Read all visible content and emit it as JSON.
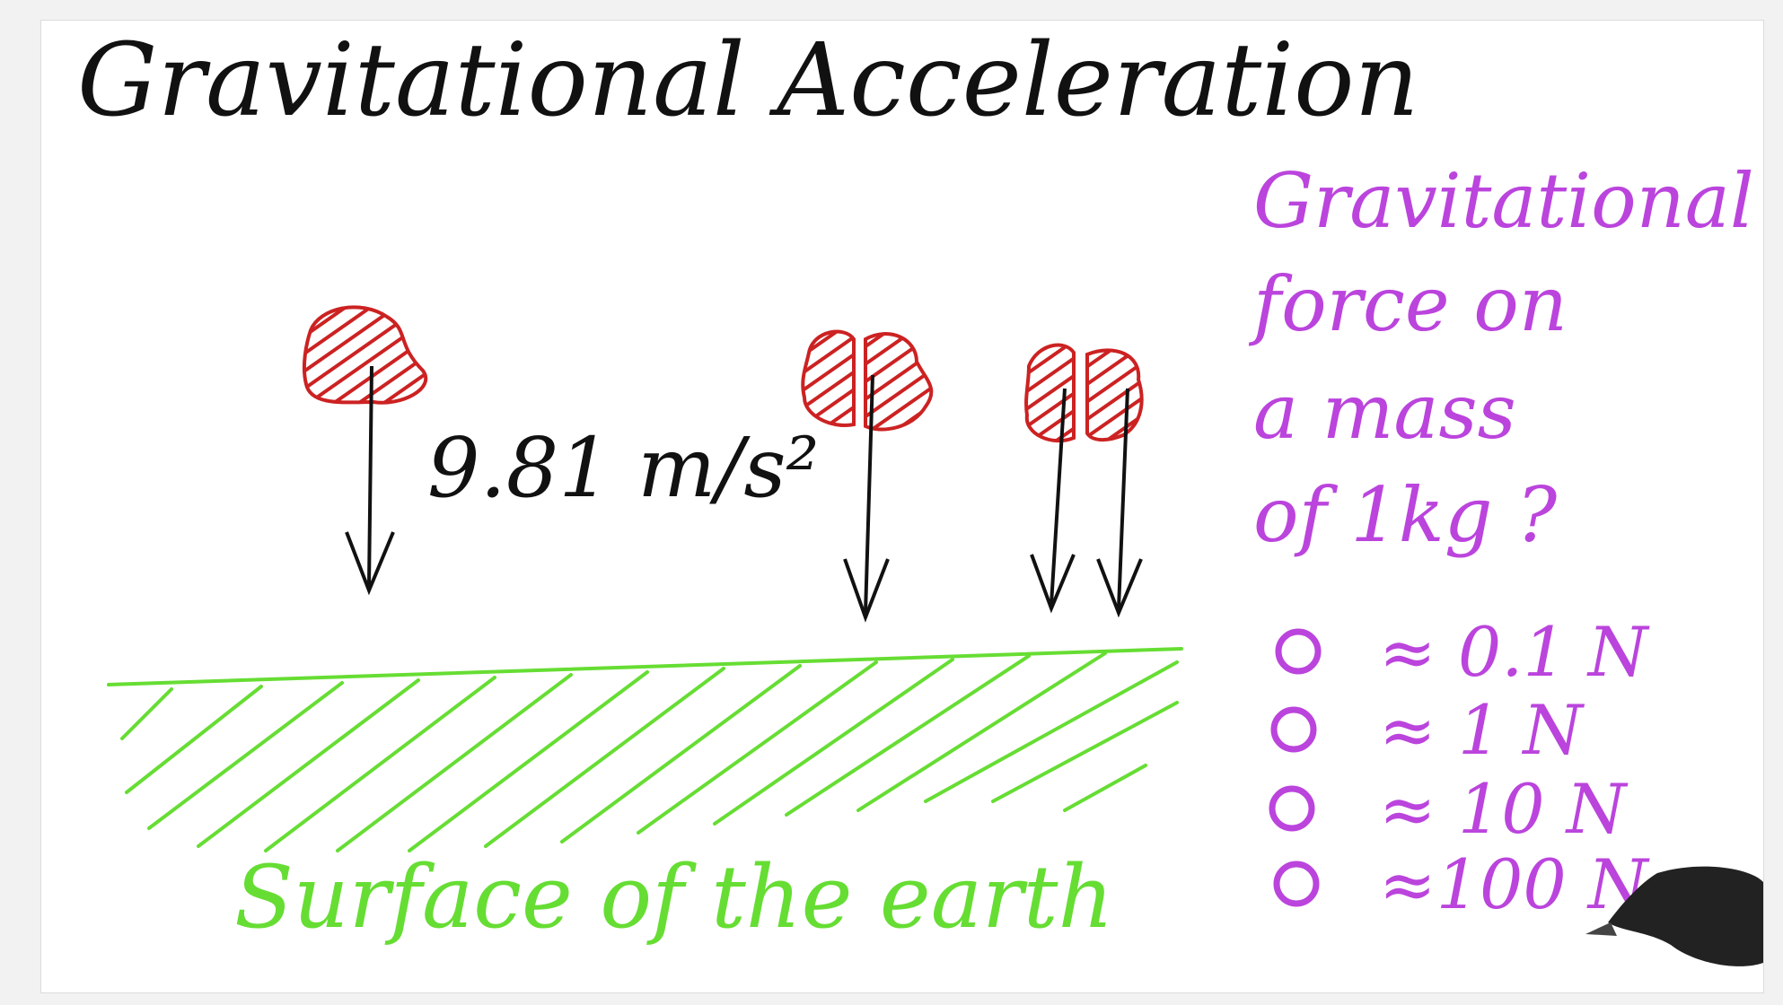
{
  "title": "Gravitational Acceleration",
  "acceleration_label": "9.81 m/s²",
  "ground_label": "Surface of the earth",
  "question": {
    "lines": [
      "Gravitational",
      "force on",
      "a mass",
      "of 1kg ?"
    ]
  },
  "options": [
    {
      "label": "≈ 0.1 N"
    },
    {
      "label": "≈ 1 N"
    },
    {
      "label": "≈ 10 N"
    },
    {
      "label": "≈100 N"
    }
  ],
  "colors": {
    "black_ink": "#111111",
    "red_ink": "#cc2222",
    "green_ink": "#66dd33",
    "purple_ink": "#bb44dd"
  },
  "icons": {
    "pen": "pen-icon"
  }
}
